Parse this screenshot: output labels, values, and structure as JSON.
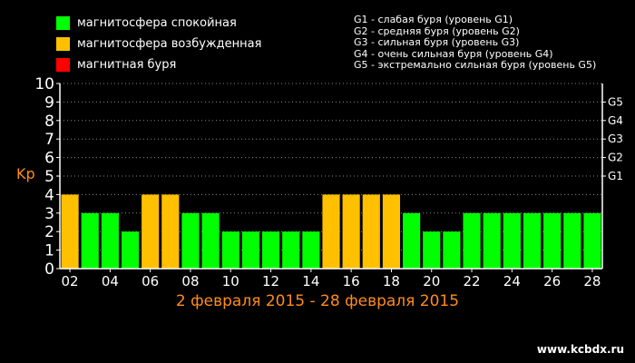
{
  "legend": {
    "items": [
      {
        "label": "магнитосфера спокойная",
        "color": "#00ff00"
      },
      {
        "label": "магнитосфера возбужденная",
        "color": "#ffc000"
      },
      {
        "label": "магнитная буря",
        "color": "#ff0000"
      }
    ]
  },
  "storm_levels": [
    "G1 - слабая буря (уровень G1)",
    "G2 - средняя буря (уровень G2)",
    "G3 - сильная буря (уровень G3)",
    "G4 - очень сильная буря (уровень G4)",
    "G5 - экстремально сильная буря (уровень G5)"
  ],
  "footer": {
    "date_range": "2 февраля 2015 - 28 февраля 2015",
    "site": "www.kcbdx.ru"
  },
  "colors": {
    "background": "#000000",
    "axis": "#ffffff",
    "grid": "#888888",
    "ylabel": "#ff8c1a",
    "daterange": "#ff8c1a"
  },
  "chart_data": {
    "type": "bar",
    "ylabel": "Kp",
    "ylim": [
      0,
      10
    ],
    "yticks": [
      0,
      1,
      2,
      3,
      4,
      5,
      6,
      7,
      8,
      9,
      10
    ],
    "right_axis": [
      {
        "label": "G1",
        "value": 5
      },
      {
        "label": "G2",
        "value": 6
      },
      {
        "label": "G3",
        "value": 7
      },
      {
        "label": "G4",
        "value": 8
      },
      {
        "label": "G5",
        "value": 9
      }
    ],
    "grid": true,
    "categories": [
      "02",
      "03",
      "04",
      "05",
      "06",
      "07",
      "08",
      "09",
      "10",
      "11",
      "12",
      "13",
      "14",
      "15",
      "16",
      "17",
      "18",
      "19",
      "20",
      "21",
      "22",
      "23",
      "24",
      "25",
      "26",
      "27",
      "28"
    ],
    "xtick_labels": [
      "02",
      "04",
      "06",
      "08",
      "10",
      "12",
      "14",
      "16",
      "18",
      "20",
      "22",
      "24",
      "26",
      "28"
    ],
    "values": [
      4,
      3,
      3,
      2,
      4,
      4,
      3,
      3,
      2,
      2,
      2,
      2,
      2,
      4,
      4,
      4,
      4,
      3,
      2,
      2,
      3,
      3,
      3,
      3,
      3,
      3,
      3
    ]
  }
}
